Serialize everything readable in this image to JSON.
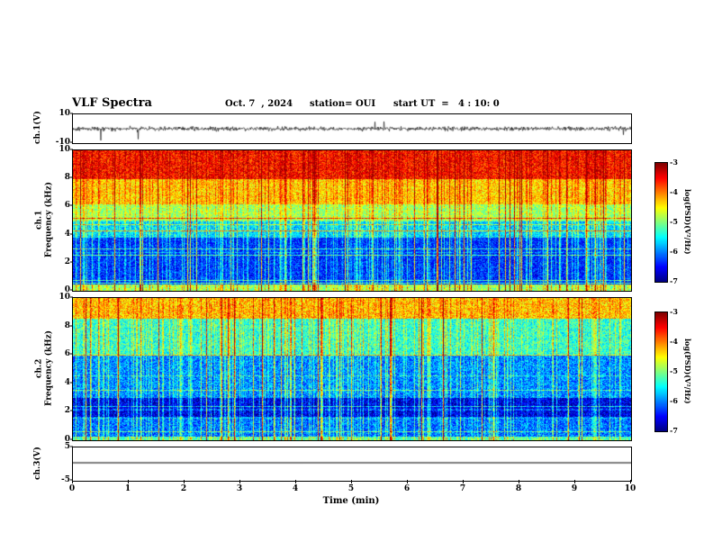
{
  "header": {
    "title": "VLF Spectra",
    "date": "Oct. 7  , 2024",
    "station": "station= OUI",
    "start_ut": "start UT  =   4 : 10: 0"
  },
  "panels": {
    "ch1_wave": {
      "label": "ch.1(V)",
      "yticks": [
        "10",
        "-10"
      ]
    },
    "spec1": {
      "channel": "ch.1",
      "ylabel": "Frequency  (kHz)",
      "yticks": [
        "10",
        "8",
        "6",
        "4",
        "2",
        "0"
      ]
    },
    "spec2": {
      "channel": "ch.2",
      "ylabel": "Frequency  (kHz)",
      "yticks": [
        "10",
        "8",
        "6",
        "4",
        "2",
        "0"
      ]
    },
    "ch3_wave": {
      "label": "ch.3(V)",
      "yticks": [
        "5",
        "-5"
      ]
    }
  },
  "xaxis": {
    "label": "Time  (min)",
    "ticks": [
      "0",
      "1",
      "2",
      "3",
      "4",
      "5",
      "6",
      "7",
      "8",
      "9",
      "10"
    ]
  },
  "colorbars": [
    {
      "label": "log(PSD)(V²/Hz)",
      "ticks": [
        "-3",
        "-4",
        "-5",
        "-6",
        "-7"
      ]
    },
    {
      "label": "log(PSD)(V²/Hz)",
      "ticks": [
        "-3",
        "-4",
        "-5",
        "-6",
        "-7"
      ]
    }
  ],
  "chart_data": [
    {
      "type": "line",
      "name": "ch1_waveform",
      "xlabel": "Time (min)",
      "ylabel": "ch.1(V)",
      "xlim": [
        0,
        10
      ],
      "ylim": [
        -10,
        10
      ],
      "summary": "Broadband noise centered on 0 V, typical amplitude about ±1–2 V, with frequent impulsive spikes reaching roughly ±5–9 V throughout the 10-minute record."
    },
    {
      "type": "heatmap",
      "name": "ch1_spectrogram",
      "xlabel": "Time (min)",
      "ylabel": "Frequency (kHz)",
      "xlim": [
        0,
        10
      ],
      "ylim": [
        0,
        10
      ],
      "zlabel": "log(PSD)(V²/Hz)",
      "zlim": [
        -7,
        -3
      ],
      "palette": "jet",
      "summary": "Strong power (log PSD ≈ -3.5, red/orange with yellow flecks) above ~8 kHz; yellow-green band ≈ -4.4 between ~6–8 kHz; green ≈ -4.9 around 5–6 kHz; below ~5 kHz mostly low power (blue, ≈ -5.7 to -6.4) crossed by many vertical broadband sferic streaks (cyan/green, some reaching red) and narrow horizontal interference lines; thin bright band at the lowest frequencies near 0 kHz."
    },
    {
      "type": "heatmap",
      "name": "ch2_spectrogram",
      "xlabel": "Time (min)",
      "ylabel": "Frequency (kHz)",
      "xlim": [
        0,
        10
      ],
      "ylim": [
        0,
        10
      ],
      "zlabel": "log(PSD)(V²/Hz)",
      "zlim": [
        -7,
        -3
      ],
      "palette": "jet",
      "summary": "Green-yellow band (≈ -4.3, with sparse red flecks) above ~8.5 kHz; 6–8.5 kHz mottled blue with cyan/green noise ≈ -5.4; below ~6 kHz low power blue ≈ -6 with dense vertical sferic streaks; darkest band (≈ -6.7) near 2 kHz; a few full-height orange columns (e.g. near t ≈ 3.8 min); thin brighter lines near the bottom edge."
    },
    {
      "type": "line",
      "name": "ch3_waveform",
      "xlabel": "Time (min)",
      "ylabel": "ch.3(V)",
      "xlim": [
        0,
        10
      ],
      "ylim": [
        -5,
        5
      ],
      "summary": "Constant flat line just above 0 V for the full 10 minutes; no variation."
    }
  ]
}
